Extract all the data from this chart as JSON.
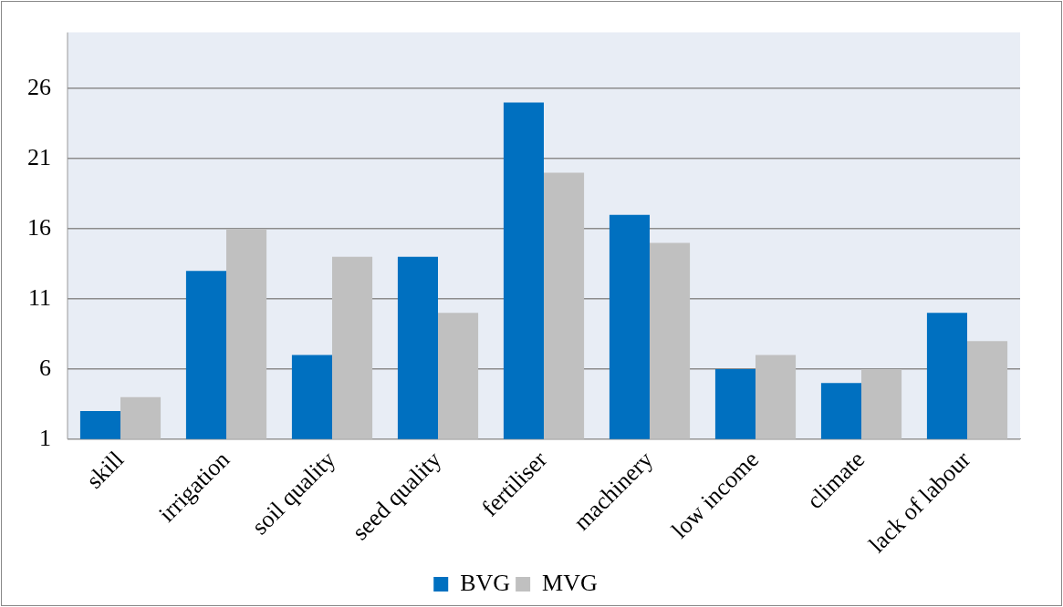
{
  "chart_data": {
    "type": "bar",
    "categories": [
      "skill",
      "irrigation",
      "soil quality",
      "seed quality",
      "fertiliser",
      "machinery",
      "low income",
      "climate",
      "lack of labour"
    ],
    "series": [
      {
        "name": "BVG",
        "color": "#0070c0",
        "values": [
          3,
          13,
          7,
          14,
          25,
          17,
          6,
          5,
          10
        ]
      },
      {
        "name": "MVG",
        "color": "#c0c0c0",
        "values": [
          4,
          16,
          14,
          10,
          20,
          15,
          7,
          6,
          8
        ]
      }
    ],
    "ylim": [
      1,
      30
    ],
    "yticks": [
      1,
      6,
      11,
      16,
      21,
      26
    ],
    "grid": "y",
    "legend": "bottom"
  }
}
